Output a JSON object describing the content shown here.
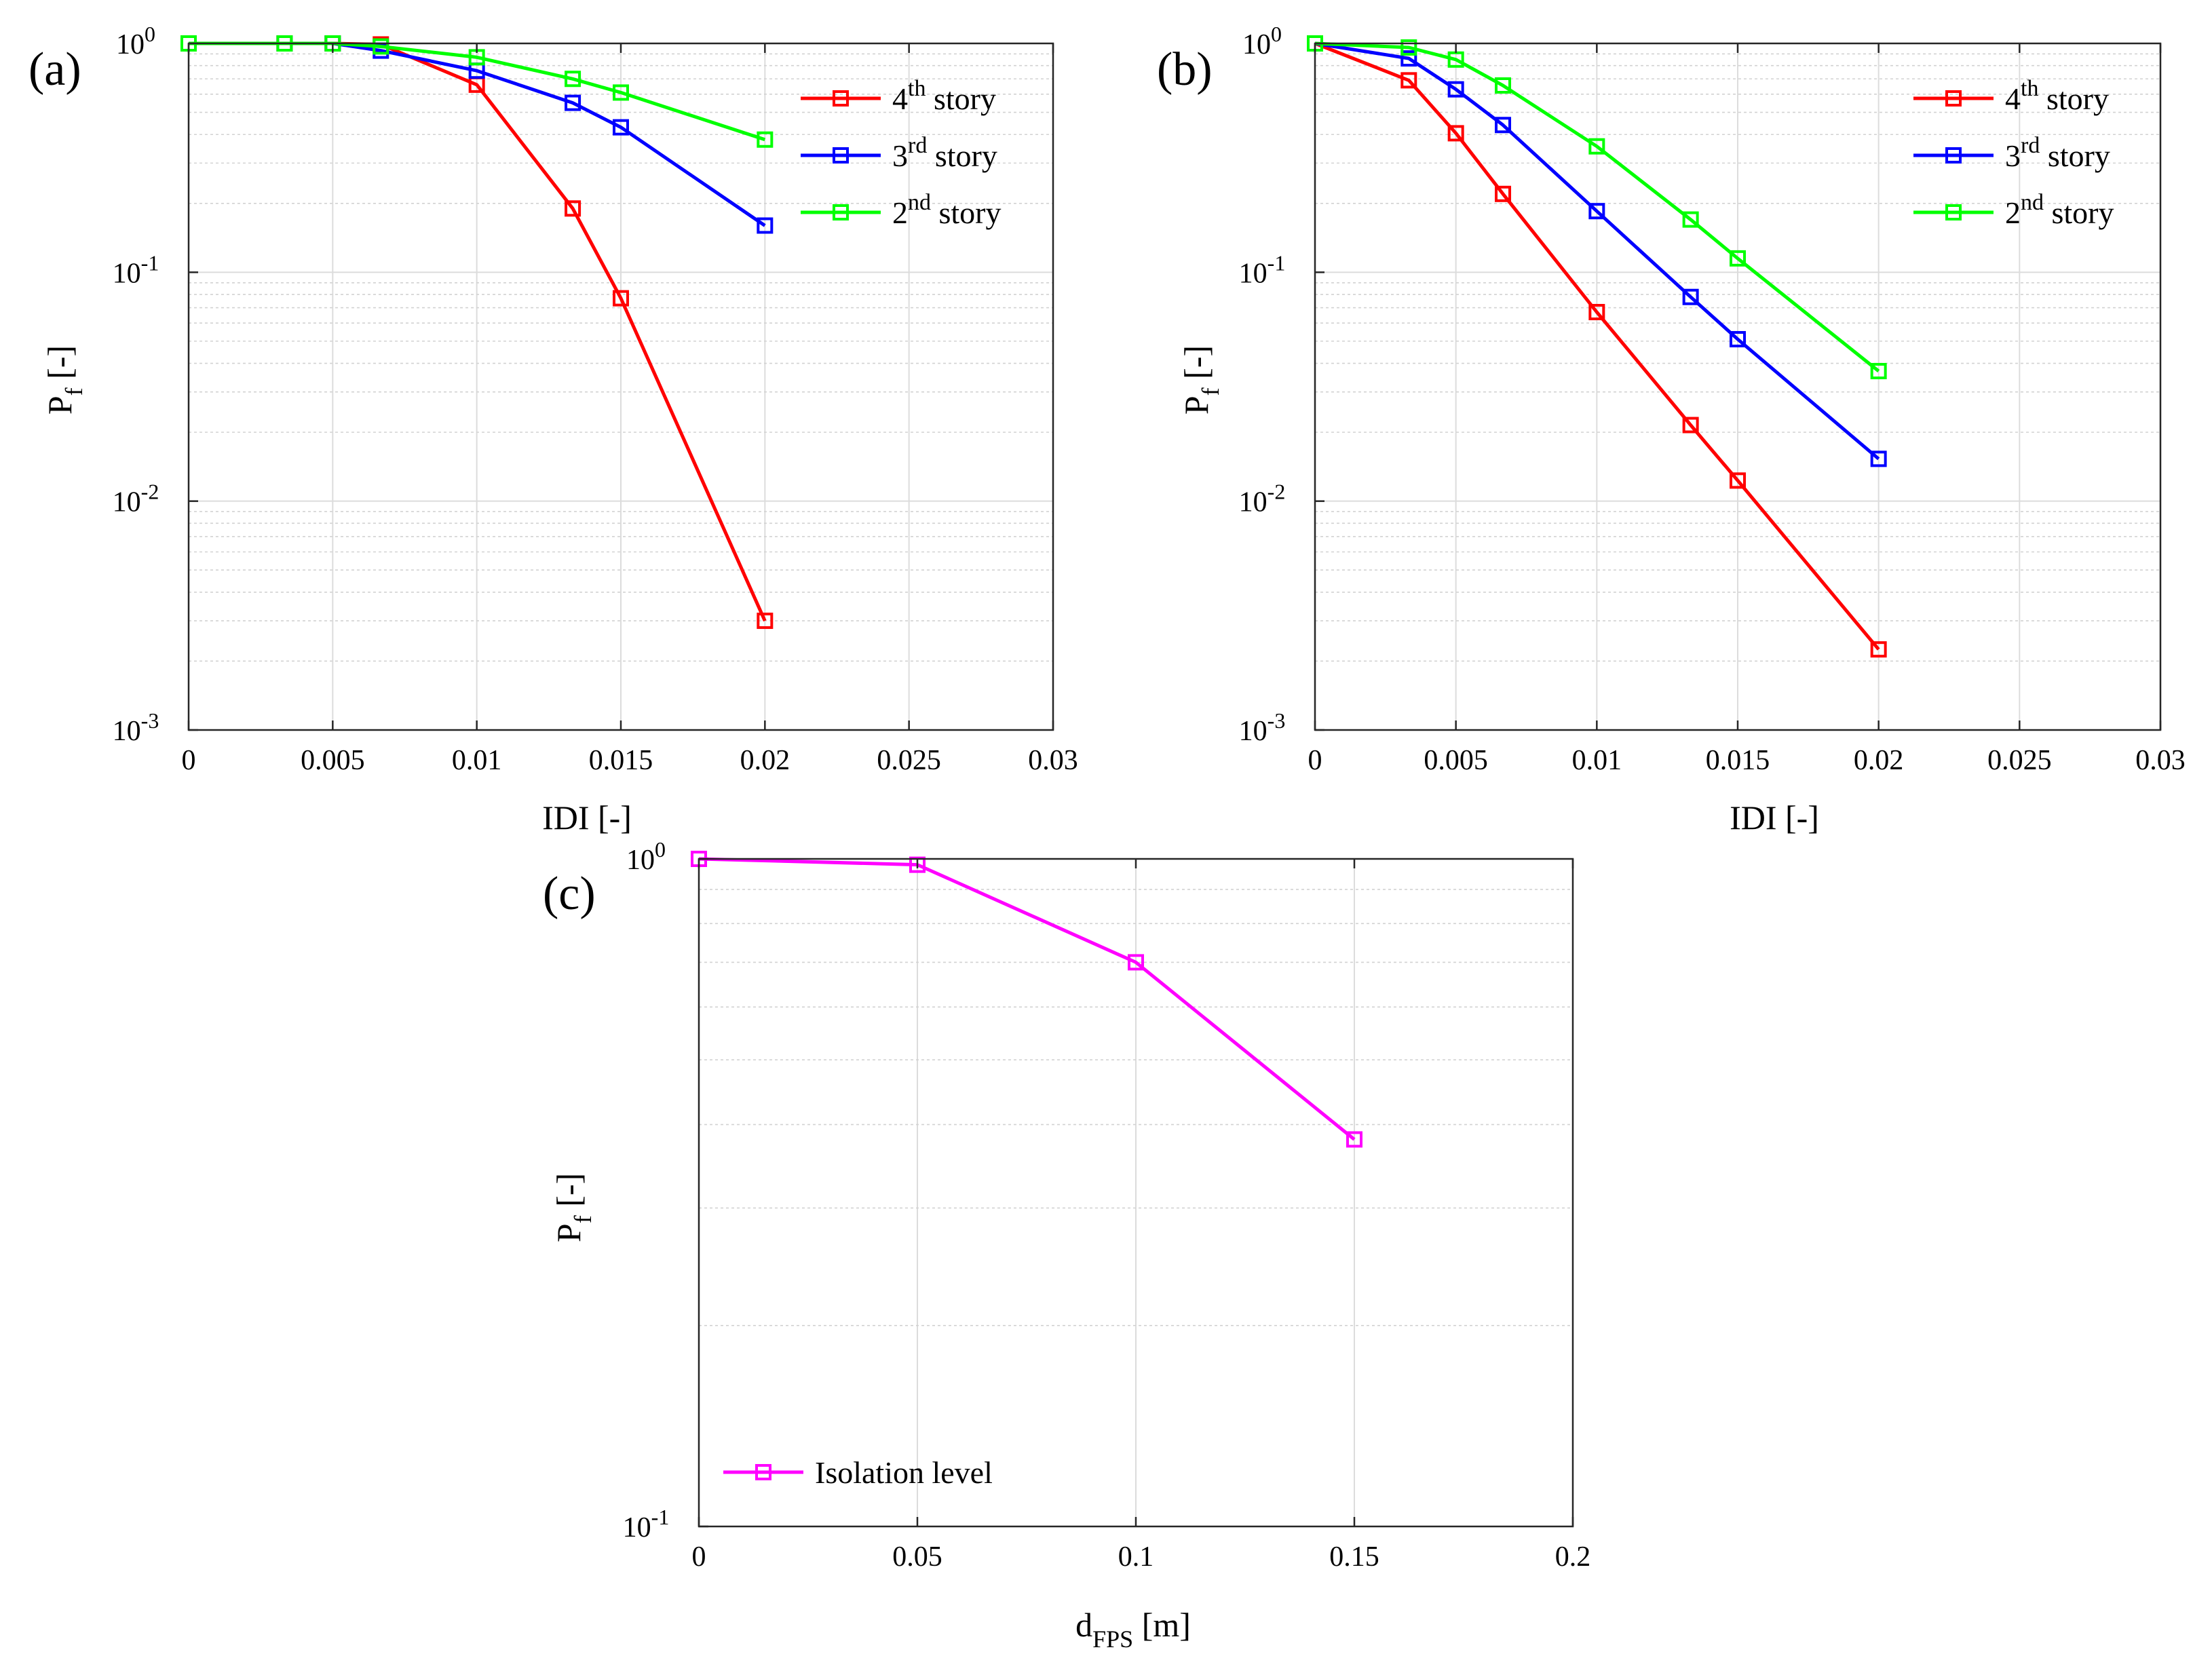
{
  "chart_data": [
    {
      "panel": "(a)",
      "type": "line",
      "xscale": "linear",
      "yscale": "log",
      "xlabel": "IDI [-]",
      "ylabel_main": "P",
      "ylabel_sub": "f",
      "ylabel_tail": " [-]",
      "xlim": [
        0,
        0.03
      ],
      "ylim": [
        0.001,
        1
      ],
      "xticks": [
        0,
        0.005,
        0.01,
        0.015,
        0.02,
        0.025,
        0.03
      ],
      "xtick_labels": [
        "0",
        "0.005",
        "0.01",
        "0.015",
        "0.02",
        "0.025",
        "0.03"
      ],
      "yticks": [
        {
          "base": "10",
          "exp": "-3"
        },
        {
          "base": "10",
          "exp": "-2"
        },
        {
          "base": "10",
          "exp": "-1"
        },
        {
          "base": "10",
          "exp": "0"
        }
      ],
      "grid": true,
      "legend_position": "top-right",
      "series": [
        {
          "name": "4th story",
          "label_num": "4",
          "label_sup": "th",
          "label_word": "story",
          "color": "#ff0000",
          "x": [
            0,
            0.00333,
            0.005,
            0.00667,
            0.01,
            0.01333,
            0.015,
            0.02
          ],
          "y": [
            1.0,
            1.0,
            1.0,
            0.99,
            0.66,
            0.19,
            0.077,
            0.003
          ]
        },
        {
          "name": "3rd story",
          "label_num": "3",
          "label_sup": "rd",
          "label_word": "story",
          "color": "#0000ff",
          "x": [
            0,
            0.00333,
            0.005,
            0.00667,
            0.01,
            0.01333,
            0.015,
            0.02
          ],
          "y": [
            1.0,
            1.0,
            1.0,
            0.93,
            0.76,
            0.55,
            0.43,
            0.16
          ]
        },
        {
          "name": "2nd story",
          "label_num": "2",
          "label_sup": "nd",
          "label_word": "story",
          "color": "#00ff00",
          "x": [
            0,
            0.00333,
            0.005,
            0.00667,
            0.01,
            0.01333,
            0.015,
            0.02
          ],
          "y": [
            1.0,
            1.0,
            1.0,
            0.97,
            0.87,
            0.7,
            0.61,
            0.38
          ]
        }
      ]
    },
    {
      "panel": "(b)",
      "type": "line",
      "xscale": "linear",
      "yscale": "log",
      "xlabel": "IDI [-]",
      "ylabel_main": "P",
      "ylabel_sub": "f",
      "ylabel_tail": " [-]",
      "xlim": [
        0,
        0.03
      ],
      "ylim": [
        0.001,
        1
      ],
      "xticks": [
        0,
        0.005,
        0.01,
        0.015,
        0.02,
        0.025,
        0.03
      ],
      "xtick_labels": [
        "0",
        "0.005",
        "0.01",
        "0.015",
        "0.02",
        "0.025",
        "0.03"
      ],
      "yticks": [
        {
          "base": "10",
          "exp": "-3"
        },
        {
          "base": "10",
          "exp": "-2"
        },
        {
          "base": "10",
          "exp": "-1"
        },
        {
          "base": "10",
          "exp": "0"
        }
      ],
      "grid": true,
      "legend_position": "top-right",
      "series": [
        {
          "name": "4th story",
          "label_num": "4",
          "label_sup": "th",
          "label_word": "story",
          "color": "#ff0000",
          "x": [
            0,
            0.00333,
            0.005,
            0.00667,
            0.01,
            0.01333,
            0.015,
            0.02
          ],
          "y": [
            1.0,
            0.69,
            0.405,
            0.22,
            0.067,
            0.0215,
            0.0123,
            0.00225
          ]
        },
        {
          "name": "3rd story",
          "label_num": "3",
          "label_sup": "rd",
          "label_word": "story",
          "color": "#0000ff",
          "x": [
            0,
            0.00333,
            0.005,
            0.00667,
            0.01,
            0.01333,
            0.015,
            0.02
          ],
          "y": [
            1.0,
            0.86,
            0.63,
            0.44,
            0.185,
            0.078,
            0.051,
            0.0153
          ]
        },
        {
          "name": "2nd story",
          "label_num": "2",
          "label_sup": "nd",
          "label_word": "story",
          "color": "#00ff00",
          "x": [
            0,
            0.00333,
            0.005,
            0.00667,
            0.01,
            0.01333,
            0.015,
            0.02
          ],
          "y": [
            1.0,
            0.96,
            0.85,
            0.655,
            0.355,
            0.17,
            0.115,
            0.037
          ]
        }
      ]
    },
    {
      "panel": "(c)",
      "type": "line",
      "xscale": "linear",
      "yscale": "log",
      "xlabel_main": "d",
      "xlabel_sub": "FPS",
      "xlabel_tail": " [m]",
      "ylabel_main": "P",
      "ylabel_sub": "f",
      "ylabel_tail": " [-]",
      "xlim": [
        0,
        0.2
      ],
      "ylim": [
        0.1,
        1
      ],
      "xticks": [
        0,
        0.05,
        0.1,
        0.15,
        0.2
      ],
      "xtick_labels": [
        "0",
        "0.05",
        "0.1",
        "0.15",
        "0.2"
      ],
      "yticks": [
        {
          "base": "10",
          "exp": "-1"
        },
        {
          "base": "10",
          "exp": "0"
        }
      ],
      "grid": true,
      "legend_position": "bottom-left",
      "series": [
        {
          "name": "Isolation level",
          "color": "#ff00ff",
          "x": [
            0,
            0.05,
            0.1,
            0.15
          ],
          "y": [
            1.0,
            0.98,
            0.7,
            0.38
          ]
        }
      ]
    }
  ]
}
